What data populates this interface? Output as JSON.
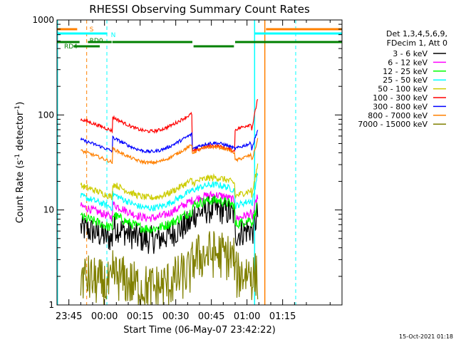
{
  "chart_data": {
    "type": "line",
    "title": "RHESSI Observing Summary Count Rates",
    "xlabel": "Start Time (06-May-07 23:42:22)",
    "ylabel_main": "Count Rate (s",
    "ylabel_sup1": "-1",
    "ylabel_mid": " detector",
    "ylabel_sup2": "-1",
    "ylabel_end": ")",
    "y_log": true,
    "ylim": [
      1,
      1000
    ],
    "xlim_minutes": [
      -20,
      100
    ],
    "y_ticks": [
      {
        "v": 1,
        "label": "1"
      },
      {
        "v": 10,
        "label": "10"
      },
      {
        "v": 100,
        "label": "100"
      },
      {
        "v": 1000,
        "label": "1000"
      }
    ],
    "x_ticks": [
      {
        "m": -15,
        "label": "23:45"
      },
      {
        "m": 0,
        "label": "00:00"
      },
      {
        "m": 15,
        "label": "00:15"
      },
      {
        "m": 30,
        "label": "00:30"
      },
      {
        "m": 45,
        "label": "00:45"
      },
      {
        "m": 60,
        "label": "01:00"
      },
      {
        "m": 75,
        "label": "01:15"
      }
    ],
    "legend_header": [
      "Det 1,3,4,5,6,9,",
      "FDecim 1, Att 0"
    ],
    "series": [
      {
        "name": "3 - 6 keV",
        "color": "#000000",
        "early": 6.5,
        "mid": 8.8,
        "late": 5.5,
        "flare": 9,
        "noise": 0.35
      },
      {
        "name": "6 - 12 keV",
        "color": "#ff00ff",
        "early": 11,
        "mid": 12.5,
        "late": 8,
        "flare": 14,
        "noise": 0.1
      },
      {
        "name": "12 - 25 keV",
        "color": "#00ff00",
        "early": 8.5,
        "mid": 11,
        "late": 7,
        "flare": 12,
        "noise": 0.12
      },
      {
        "name": "25 - 50 keV",
        "color": "#00ffff",
        "early": 14,
        "mid": 16,
        "late": 11,
        "flare": 25,
        "noise": 0.08
      },
      {
        "name": "50 - 100 keV",
        "color": "#cccc00",
        "early": 18,
        "mid": 19,
        "late": 14,
        "flare": 30,
        "noise": 0.08
      },
      {
        "name": "100 - 300 keV",
        "color": "#ff0000",
        "early": 90,
        "mid": 41,
        "late": 70,
        "flare": 150,
        "noise": 0.04
      },
      {
        "name": "300 - 800 keV",
        "color": "#0000ff",
        "early": 55,
        "mid": 44,
        "late": 44,
        "flare": 70,
        "noise": 0.04
      },
      {
        "name": "800 - 7000 keV",
        "color": "#ff8000",
        "early": 42,
        "mid": 40,
        "late": 33,
        "flare": 55,
        "noise": 0.04
      },
      {
        "name": "7000 - 15000 keV",
        "color": "#808000",
        "early": 2,
        "mid": 3,
        "late": 2,
        "flare": 2,
        "noise": 0.6
      }
    ],
    "flags": [
      {
        "label": "S",
        "color": "#ff8000"
      },
      {
        "label": "N",
        "color": "#00ffff"
      },
      {
        "label": "RD0",
        "color": "#008000"
      },
      {
        "label": "RD4",
        "color": "#008000"
      }
    ],
    "timestamp": "15-Oct-2021 01:18"
  }
}
